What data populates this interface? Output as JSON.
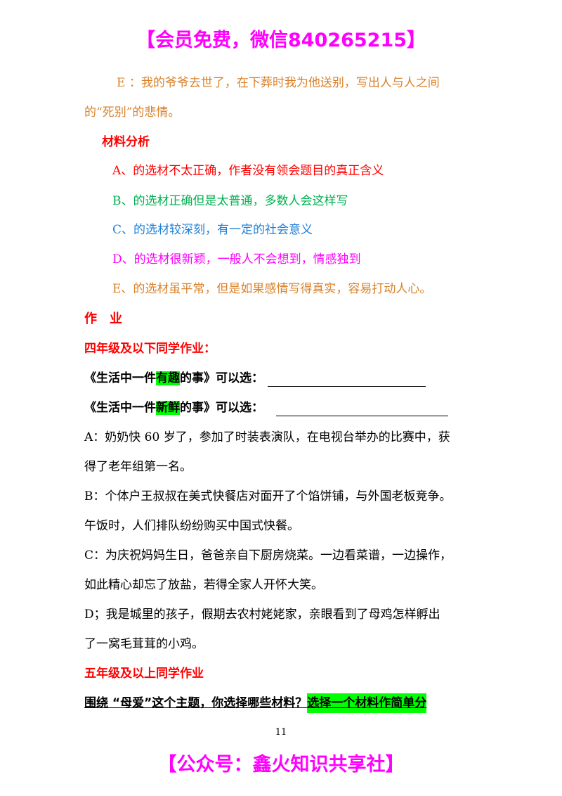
{
  "header_banner": "【会员免费，微信840265215】",
  "footer_banner": "【公众号：鑫火知识共享社】",
  "page_number": "11",
  "colors": {
    "banner": "#ff00ff",
    "heading": "#ff0000",
    "option_a": "#ff0000",
    "option_b": "#00b050",
    "option_c": "#1f7fd6",
    "option_d": "#ff00ff",
    "option_e": "#d9822b",
    "highlight": "#00ff00"
  },
  "material_e": {
    "line1": "E ：我的爷爷去世了，在下葬时我为他送别，写出人与人之间",
    "line2": "的“死别”的悲情。"
  },
  "analysis": {
    "title": "材料分析",
    "items": [
      "A、的选材不太正确，作者没有领会题目的真正含义",
      "B、的选材正确但是太普通，多数人会这样写",
      "C、的选材较深刻，有一定的社会意义",
      "D、的选材很新颖，一般人不会想到，情感独到",
      "E、的选材虽平常，但是如果感情写得真实，容易打动人心。"
    ]
  },
  "homework": {
    "title": "作　业",
    "grade4_title": "四年级及以下同学作业：",
    "topic1": {
      "pre": "《生活中一件",
      "hl": "有趣",
      "post": "的事》可以选："
    },
    "topic2": {
      "pre": "《生活中一件",
      "hl": "新鲜",
      "post": "的事》可以选："
    },
    "materials": [
      {
        "line1": "A：奶奶快 60 岁了，参加了时装表演队，在电视台举办的比赛中，获",
        "line2": "得了老年组第一名。"
      },
      {
        "line1": "B：个体户王叔叔在美式快餐店对面开了个馅饼铺，与外国老板竞争。",
        "line2": "午饭时，人们排队纷纷购买中国式快餐。"
      },
      {
        "line1": "C：为庆祝妈妈生日，爸爸亲自下厨房烧菜。一边看菜谱，一边操作，",
        "line2": "如此精心却忘了放盐，若得全家人开怀大笑。"
      },
      {
        "line1": "D；我是城里的孩子，假期去农村姥姥家，亲眼看到了母鸡怎样孵出",
        "line2": "了一窝毛茸茸的小鸡。"
      }
    ],
    "grade5_title": "五年级及以上同学作业",
    "grade5_task": {
      "text": "围绕 “母爱”这个主题，你选择哪些材料？",
      "hl": "选择一个材料作简单分"
    }
  }
}
